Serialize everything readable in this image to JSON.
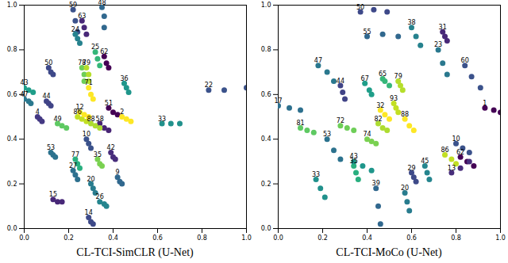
{
  "chart_data": [
    {
      "type": "scatter",
      "x_label": "CL-TCI-SimCLR (U-Net)",
      "marker": "circle",
      "data_labels": true,
      "xlim": [
        0,
        1
      ],
      "ylim": [
        0,
        1
      ],
      "xticks": [
        {
          "value": 0,
          "label": "0.0"
        },
        {
          "value": 0.2,
          "label": "0.2"
        },
        {
          "value": 0.4,
          "label": "0.4"
        },
        {
          "value": 0.6,
          "label": "0.6"
        },
        {
          "value": 0.8,
          "label": "0.8"
        },
        {
          "value": 1,
          "label": "1.0"
        }
      ],
      "yticks": [
        {
          "value": 0,
          "label": "0.0"
        },
        {
          "value": 0.2,
          "label": "0.2"
        },
        {
          "value": 0.4,
          "label": "0.4"
        },
        {
          "value": 0.6,
          "label": "0.6"
        },
        {
          "value": 0.8,
          "label": "0.8"
        },
        {
          "value": 1,
          "label": "1.0"
        }
      ],
      "series": [
        {
          "name": "59",
          "color": "#3b528b",
          "x": [
            0.22,
            0.23,
            0.24
          ],
          "values": [
            0.98,
            0.93,
            0.88
          ]
        },
        {
          "name": "48",
          "color": "#31688e",
          "x": [
            0.35,
            0.36,
            0.36
          ],
          "values": [
            0.99,
            0.95,
            0.9
          ]
        },
        {
          "name": "63",
          "color": "#482878",
          "x": [
            0.26,
            0.27,
            0.28
          ],
          "values": [
            0.93,
            0.9,
            0.87
          ]
        },
        {
          "name": "24",
          "color": "#26828e",
          "x": [
            0.23,
            0.24,
            0.25
          ],
          "values": [
            0.87,
            0.85,
            0.83
          ]
        },
        {
          "name": "25",
          "color": "#35b779",
          "x": [
            0.32,
            0.33,
            0.34
          ],
          "values": [
            0.79,
            0.76,
            0.73
          ]
        },
        {
          "name": "62",
          "color": "#440154",
          "x": [
            0.36,
            0.37,
            0.38
          ],
          "values": [
            0.77,
            0.74,
            0.72
          ]
        },
        {
          "name": "50",
          "color": "#3e4989",
          "x": [
            0.11,
            0.12,
            0.13
          ],
          "values": [
            0.72,
            0.7,
            0.69
          ]
        },
        {
          "name": "78",
          "color": "#6ece58",
          "x": [
            0.26,
            0.27,
            0.27
          ],
          "values": [
            0.72,
            0.69,
            0.66
          ]
        },
        {
          "name": "79",
          "color": "#b5de2b",
          "x": [
            0.28,
            0.29,
            0.29
          ],
          "values": [
            0.72,
            0.69,
            0.66
          ]
        },
        {
          "name": "43",
          "color": "#1f9e89",
          "x": [
            0.0,
            0.02,
            0.04
          ],
          "values": [
            0.63,
            0.62,
            0.61
          ]
        },
        {
          "name": "47",
          "color": "#2a788e",
          "x": [
            0.0,
            0.02,
            0.03
          ],
          "values": [
            0.58,
            0.57,
            0.56
          ]
        },
        {
          "name": "44",
          "color": "#414487",
          "x": [
            0.1,
            0.11,
            0.12
          ],
          "values": [
            0.57,
            0.56,
            0.55
          ]
        },
        {
          "name": "71",
          "color": "#fde725",
          "x": [
            0.29,
            0.3,
            0.31
          ],
          "values": [
            0.63,
            0.6,
            0.58
          ]
        },
        {
          "name": "36",
          "color": "#1f968b",
          "x": [
            0.45,
            0.46,
            0.47
          ],
          "values": [
            0.65,
            0.63,
            0.61
          ]
        },
        {
          "name": "22",
          "color": "#3b528b",
          "x": [
            0.83,
            0.9,
            1.0
          ],
          "values": [
            0.62,
            0.62,
            0.63
          ]
        },
        {
          "name": "33",
          "color": "#21918c",
          "x": [
            0.62,
            0.66,
            0.7
          ],
          "values": [
            0.47,
            0.47,
            0.47
          ]
        },
        {
          "name": "51",
          "color": "#440154",
          "x": [
            0.38,
            0.4,
            0.42
          ],
          "values": [
            0.54,
            0.52,
            0.51
          ]
        },
        {
          "name": "86",
          "color": "#c2df23",
          "x": [
            0.24,
            0.26,
            0.28
          ],
          "values": [
            0.5,
            0.49,
            0.48
          ]
        },
        {
          "name": "58",
          "color": "#482475",
          "x": [
            0.34,
            0.36,
            0.38
          ],
          "values": [
            0.47,
            0.45,
            0.44
          ]
        },
        {
          "name": "4",
          "color": "#443983",
          "x": [
            0.06,
            0.07,
            0.08
          ],
          "values": [
            0.5,
            0.49,
            0.48
          ]
        },
        {
          "name": "49",
          "color": "#5ec962",
          "x": [
            0.15,
            0.17,
            0.19
          ],
          "values": [
            0.47,
            0.46,
            0.45
          ]
        },
        {
          "name": "88",
          "color": "#addc30",
          "x": [
            0.3,
            0.32,
            0.34
          ],
          "values": [
            0.47,
            0.46,
            0.45
          ]
        },
        {
          "name": "12",
          "color": "#fde725",
          "x": [
            0.25,
            0.27,
            0.29
          ],
          "values": [
            0.52,
            0.51,
            0.5
          ]
        },
        {
          "name": "53",
          "color": "#2c728e",
          "x": [
            0.12,
            0.13,
            0.14
          ],
          "values": [
            0.34,
            0.33,
            0.32
          ]
        },
        {
          "name": "10",
          "color": "#3b528b",
          "x": [
            0.28,
            0.29,
            0.3
          ],
          "values": [
            0.4,
            0.38,
            0.36
          ]
        },
        {
          "name": "42",
          "color": "#472d7b",
          "x": [
            0.39,
            0.4,
            0.41
          ],
          "values": [
            0.34,
            0.32,
            0.31
          ]
        },
        {
          "name": "77",
          "color": "#29af7f",
          "x": [
            0.23,
            0.24,
            0.25
          ],
          "values": [
            0.31,
            0.29,
            0.27
          ]
        },
        {
          "name": "27",
          "color": "#2d708e",
          "x": [
            0.22,
            0.23,
            0.24
          ],
          "values": [
            0.26,
            0.24,
            0.22
          ]
        },
        {
          "name": "35",
          "color": "#7ad151",
          "x": [
            0.33,
            0.34,
            0.35
          ],
          "values": [
            0.31,
            0.29,
            0.28
          ]
        },
        {
          "name": "20",
          "color": "#287c8e",
          "x": [
            0.3,
            0.31,
            0.32
          ],
          "values": [
            0.2,
            0.18,
            0.16
          ]
        },
        {
          "name": "15",
          "color": "#482878",
          "x": [
            0.13,
            0.15,
            0.17
          ],
          "values": [
            0.13,
            0.12,
            0.12
          ]
        },
        {
          "name": "14",
          "color": "#3e4a89",
          "x": [
            0.29,
            0.3,
            0.31
          ],
          "values": [
            0.05,
            0.03,
            0.02
          ]
        },
        {
          "name": "26",
          "color": "#25858e",
          "x": [
            0.34,
            0.36,
            0.37
          ],
          "values": [
            0.12,
            0.11,
            0.1
          ]
        },
        {
          "name": "9",
          "color": "#31688e",
          "x": [
            0.42,
            0.43,
            0.44
          ],
          "values": [
            0.23,
            0.21,
            0.2
          ]
        },
        {
          "name": "2",
          "color": "#fde725",
          "x": [
            0.44,
            0.46,
            0.48
          ],
          "values": [
            0.5,
            0.49,
            0.48
          ]
        }
      ]
    },
    {
      "type": "scatter",
      "x_label": "CL-TCI-MoCo (U-Net)",
      "marker": "circle",
      "data_labels": true,
      "xlim": [
        0,
        1
      ],
      "ylim": [
        0,
        1
      ],
      "xticks": [
        {
          "value": 0,
          "label": "0.0"
        },
        {
          "value": 0.2,
          "label": "0.2"
        },
        {
          "value": 0.4,
          "label": "0.4"
        },
        {
          "value": 0.6,
          "label": "0.6"
        },
        {
          "value": 0.8,
          "label": "0.8"
        },
        {
          "value": 1,
          "label": "1.0"
        }
      ],
      "yticks": [
        {
          "value": 0,
          "label": "0.0"
        },
        {
          "value": 0.2,
          "label": "0.2"
        },
        {
          "value": 0.4,
          "label": "0.4"
        },
        {
          "value": 0.6,
          "label": "0.6"
        },
        {
          "value": 0.8,
          "label": "0.8"
        },
        {
          "value": 1,
          "label": "1.0"
        }
      ],
      "series": [
        {
          "name": "50",
          "color": "#3e4989",
          "x": [
            0.37,
            0.43,
            0.49
          ],
          "values": [
            0.97,
            0.98,
            0.97
          ]
        },
        {
          "name": "55",
          "color": "#31688e",
          "x": [
            0.4,
            0.47,
            0.54
          ],
          "values": [
            0.86,
            0.87,
            0.86
          ]
        },
        {
          "name": "38",
          "color": "#26828e",
          "x": [
            0.6,
            0.62,
            0.64
          ],
          "values": [
            0.9,
            0.86,
            0.82
          ]
        },
        {
          "name": "31",
          "color": "#482878",
          "x": [
            0.74,
            0.75,
            0.76
          ],
          "values": [
            0.88,
            0.86,
            0.84
          ]
        },
        {
          "name": "23",
          "color": "#2a788e",
          "x": [
            0.72,
            0.74,
            0.76
          ],
          "values": [
            0.8,
            0.74,
            0.69
          ]
        },
        {
          "name": "60",
          "color": "#3b528b",
          "x": [
            0.84,
            0.87,
            0.91
          ],
          "values": [
            0.73,
            0.68,
            0.63
          ]
        },
        {
          "name": "47",
          "color": "#2a788e",
          "x": [
            0.18,
            0.22,
            0.25
          ],
          "values": [
            0.73,
            0.7,
            0.66
          ]
        },
        {
          "name": "44",
          "color": "#414487",
          "x": [
            0.28,
            0.29,
            0.3
          ],
          "values": [
            0.64,
            0.61,
            0.58
          ]
        },
        {
          "name": "67",
          "color": "#1f9e89",
          "x": [
            0.39,
            0.41,
            0.42
          ],
          "values": [
            0.65,
            0.62,
            0.6
          ]
        },
        {
          "name": "65",
          "color": "#35b779",
          "x": [
            0.47,
            0.48,
            0.5
          ],
          "values": [
            0.67,
            0.66,
            0.64
          ]
        },
        {
          "name": "79",
          "color": "#b5de2b",
          "x": [
            0.54,
            0.55,
            0.56
          ],
          "values": [
            0.66,
            0.64,
            0.62
          ]
        },
        {
          "name": "17",
          "color": "#2d708e",
          "x": [
            0.0,
            0.05,
            0.1
          ],
          "values": [
            0.55,
            0.54,
            0.53
          ]
        },
        {
          "name": "1",
          "color": "#440154",
          "x": [
            0.93,
            0.97,
            1.0
          ],
          "values": [
            0.54,
            0.53,
            0.52
          ]
        },
        {
          "name": "93",
          "color": "#c2df23",
          "x": [
            0.52,
            0.53,
            0.54
          ],
          "values": [
            0.56,
            0.54,
            0.52
          ]
        },
        {
          "name": "32",
          "color": "#fde725",
          "x": [
            0.46,
            0.48,
            0.5
          ],
          "values": [
            0.53,
            0.51,
            0.49
          ]
        },
        {
          "name": "82",
          "color": "#addc30",
          "x": [
            0.45,
            0.47,
            0.49
          ],
          "values": [
            0.47,
            0.45,
            0.44
          ]
        },
        {
          "name": "81",
          "color": "#5ec962",
          "x": [
            0.1,
            0.13,
            0.16
          ],
          "values": [
            0.45,
            0.44,
            0.43
          ]
        },
        {
          "name": "72",
          "color": "#6ece58",
          "x": [
            0.28,
            0.31,
            0.34
          ],
          "values": [
            0.46,
            0.45,
            0.44
          ]
        },
        {
          "name": "74",
          "color": "#7ad151",
          "x": [
            0.4,
            0.42,
            0.44
          ],
          "values": [
            0.4,
            0.39,
            0.38
          ]
        },
        {
          "name": "88",
          "color": "#fde725",
          "x": [
            0.57,
            0.59,
            0.61
          ],
          "values": [
            0.49,
            0.46,
            0.44
          ]
        },
        {
          "name": "53",
          "color": "#2c728e",
          "x": [
            0.22,
            0.25,
            0.28
          ],
          "values": [
            0.4,
            0.35,
            0.31
          ]
        },
        {
          "name": "10",
          "color": "#3b528b",
          "x": [
            0.8,
            0.83,
            0.86
          ],
          "values": [
            0.38,
            0.36,
            0.34
          ]
        },
        {
          "name": "86",
          "color": "#c2df23",
          "x": [
            0.75,
            0.78,
            0.8
          ],
          "values": [
            0.33,
            0.31,
            0.29
          ]
        },
        {
          "name": "62",
          "color": "#440154",
          "x": [
            0.82,
            0.85,
            0.88
          ],
          "values": [
            0.32,
            0.3,
            0.28
          ]
        },
        {
          "name": "13",
          "color": "#472d7b",
          "x": [
            0.78,
            0.82,
            0.86
          ],
          "values": [
            0.25,
            0.27,
            0.3
          ]
        },
        {
          "name": "35",
          "color": "#29af7f",
          "x": [
            0.34,
            0.35,
            0.36
          ],
          "values": [
            0.28,
            0.25,
            0.22
          ]
        },
        {
          "name": "43",
          "color": "#1f968b",
          "x": [
            0.34,
            0.38,
            0.42
          ],
          "values": [
            0.3,
            0.28,
            0.26
          ]
        },
        {
          "name": "33",
          "color": "#21918c",
          "x": [
            0.17,
            0.19,
            0.21
          ],
          "values": [
            0.22,
            0.18,
            0.14
          ]
        },
        {
          "name": "39",
          "color": "#31688e",
          "x": [
            0.44,
            0.45,
            0.46
          ],
          "values": [
            0.18,
            0.1,
            0.02
          ]
        },
        {
          "name": "20",
          "color": "#287c8e",
          "x": [
            0.57,
            0.58,
            0.59
          ],
          "values": [
            0.16,
            0.12,
            0.08
          ]
        },
        {
          "name": "45",
          "color": "#25858e",
          "x": [
            0.66,
            0.67,
            0.68
          ],
          "values": [
            0.28,
            0.25,
            0.22
          ]
        },
        {
          "name": "29",
          "color": "#3e4a89",
          "x": [
            0.6,
            0.61,
            0.62
          ],
          "values": [
            0.25,
            0.23,
            0.21
          ]
        }
      ]
    }
  ]
}
